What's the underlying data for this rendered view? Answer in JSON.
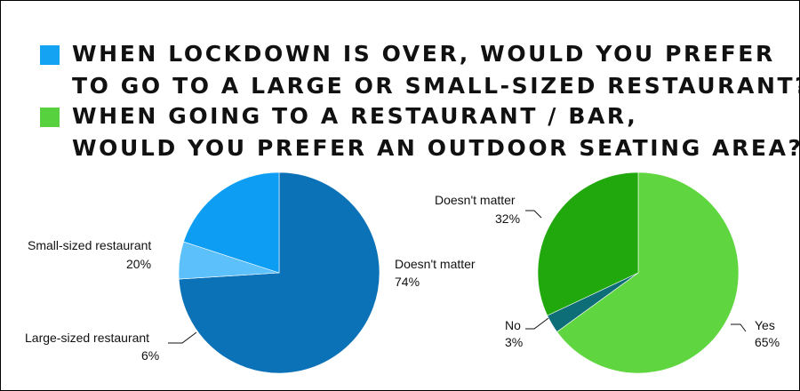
{
  "questions": [
    {
      "color": "#14a3f3",
      "lines": [
        "WHEN LOCKDOWN IS OVER, WOULD YOU PREFER",
        "TO GO TO A LARGE OR SMALL-SIZED RESTAURANT?"
      ]
    },
    {
      "color": "#58d13f",
      "lines": [
        "WHEN GOING TO A RESTAURANT / BAR,",
        "WOULD YOU PREFER AN OUTDOOR SEATING AREA?"
      ]
    }
  ],
  "chart_data": [
    {
      "type": "pie",
      "title": "WHEN LOCKDOWN IS OVER, WOULD YOU PREFER TO GO TO A LARGE OR SMALL-SIZED RESTAURANT?",
      "slices": [
        {
          "label": "Doesn't matter",
          "value": 74,
          "value_label": "74%",
          "color": "#0c72b8"
        },
        {
          "label": "Large-sized restaurant",
          "value": 6,
          "value_label": "6%",
          "color": "#5cc0fb"
        },
        {
          "label": "Small-sized restaurant",
          "value": 20,
          "value_label": "20%",
          "color": "#0d9df3"
        }
      ]
    },
    {
      "type": "pie",
      "title": "WHEN GOING TO A RESTAURANT / BAR, WOULD YOU PREFER AN OUTDOOR SEATING AREA?",
      "slices": [
        {
          "label": "Yes",
          "value": 65,
          "value_label": "65%",
          "color": "#5fd63f"
        },
        {
          "label": "No",
          "value": 3,
          "value_label": "3%",
          "color": "#0e6e78"
        },
        {
          "label": "Doesn't matter",
          "value": 32,
          "value_label": "32%",
          "color": "#21a80d"
        }
      ]
    }
  ]
}
